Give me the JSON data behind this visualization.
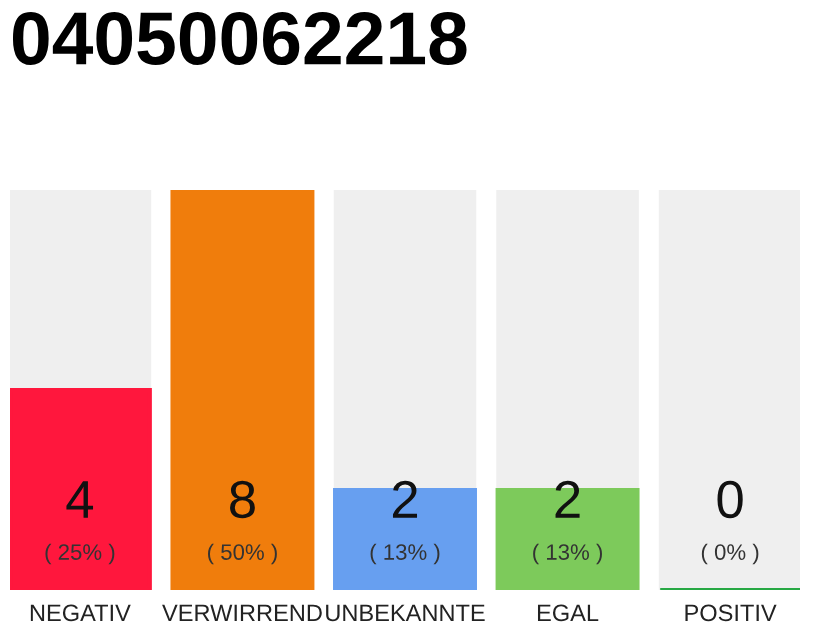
{
  "chart_data": {
    "type": "bar",
    "title": "04050062218",
    "categories": [
      "NEGATIV",
      "VERWIRREND",
      "UNBEKANNTE",
      "EGAL",
      "POSITIV"
    ],
    "values": [
      4,
      8,
      2,
      2,
      0
    ],
    "colors": [
      "#ff173d",
      "#f07d0c",
      "#679ff0",
      "#7dca5b",
      "#27a844"
    ],
    "value_labels": [
      "4\n( 25% )",
      "8\n( 50% )",
      "2\n( 13% )",
      "2\n( 13% )",
      "0\n( 0% )"
    ],
    "ylim": [
      0,
      8
    ],
    "grid": false,
    "legend": false
  }
}
